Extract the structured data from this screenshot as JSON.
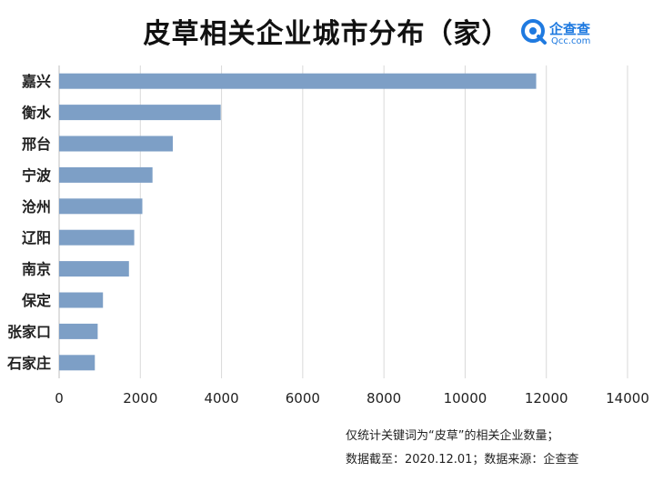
{
  "title": "皮草相关企业城市分布（家）",
  "logo": {
    "name": "企查查",
    "url": "Qcc.com",
    "color": "#1f7ae0"
  },
  "footnotes": [
    "仅统计关键词为“皮草”的相关企业数量；",
    "数据截至：2020.12.01；数据来源：企查查"
  ],
  "chart_data": {
    "type": "bar",
    "orientation": "horizontal",
    "categories": [
      "嘉兴",
      "衡水",
      "邢台",
      "宁波",
      "沧州",
      "辽阳",
      "南京",
      "保定",
      "张家口",
      "石家庄"
    ],
    "values": [
      11750,
      3980,
      2800,
      2300,
      2050,
      1850,
      1720,
      1080,
      950,
      880
    ],
    "xlim": [
      0,
      14000
    ],
    "xticks": [
      "0",
      "2000",
      "4000",
      "6000",
      "8000",
      "10000",
      "12000",
      "14000"
    ],
    "grid": true,
    "bar_color": "#7d9fc6",
    "grid_color": "#d9d9d9"
  }
}
